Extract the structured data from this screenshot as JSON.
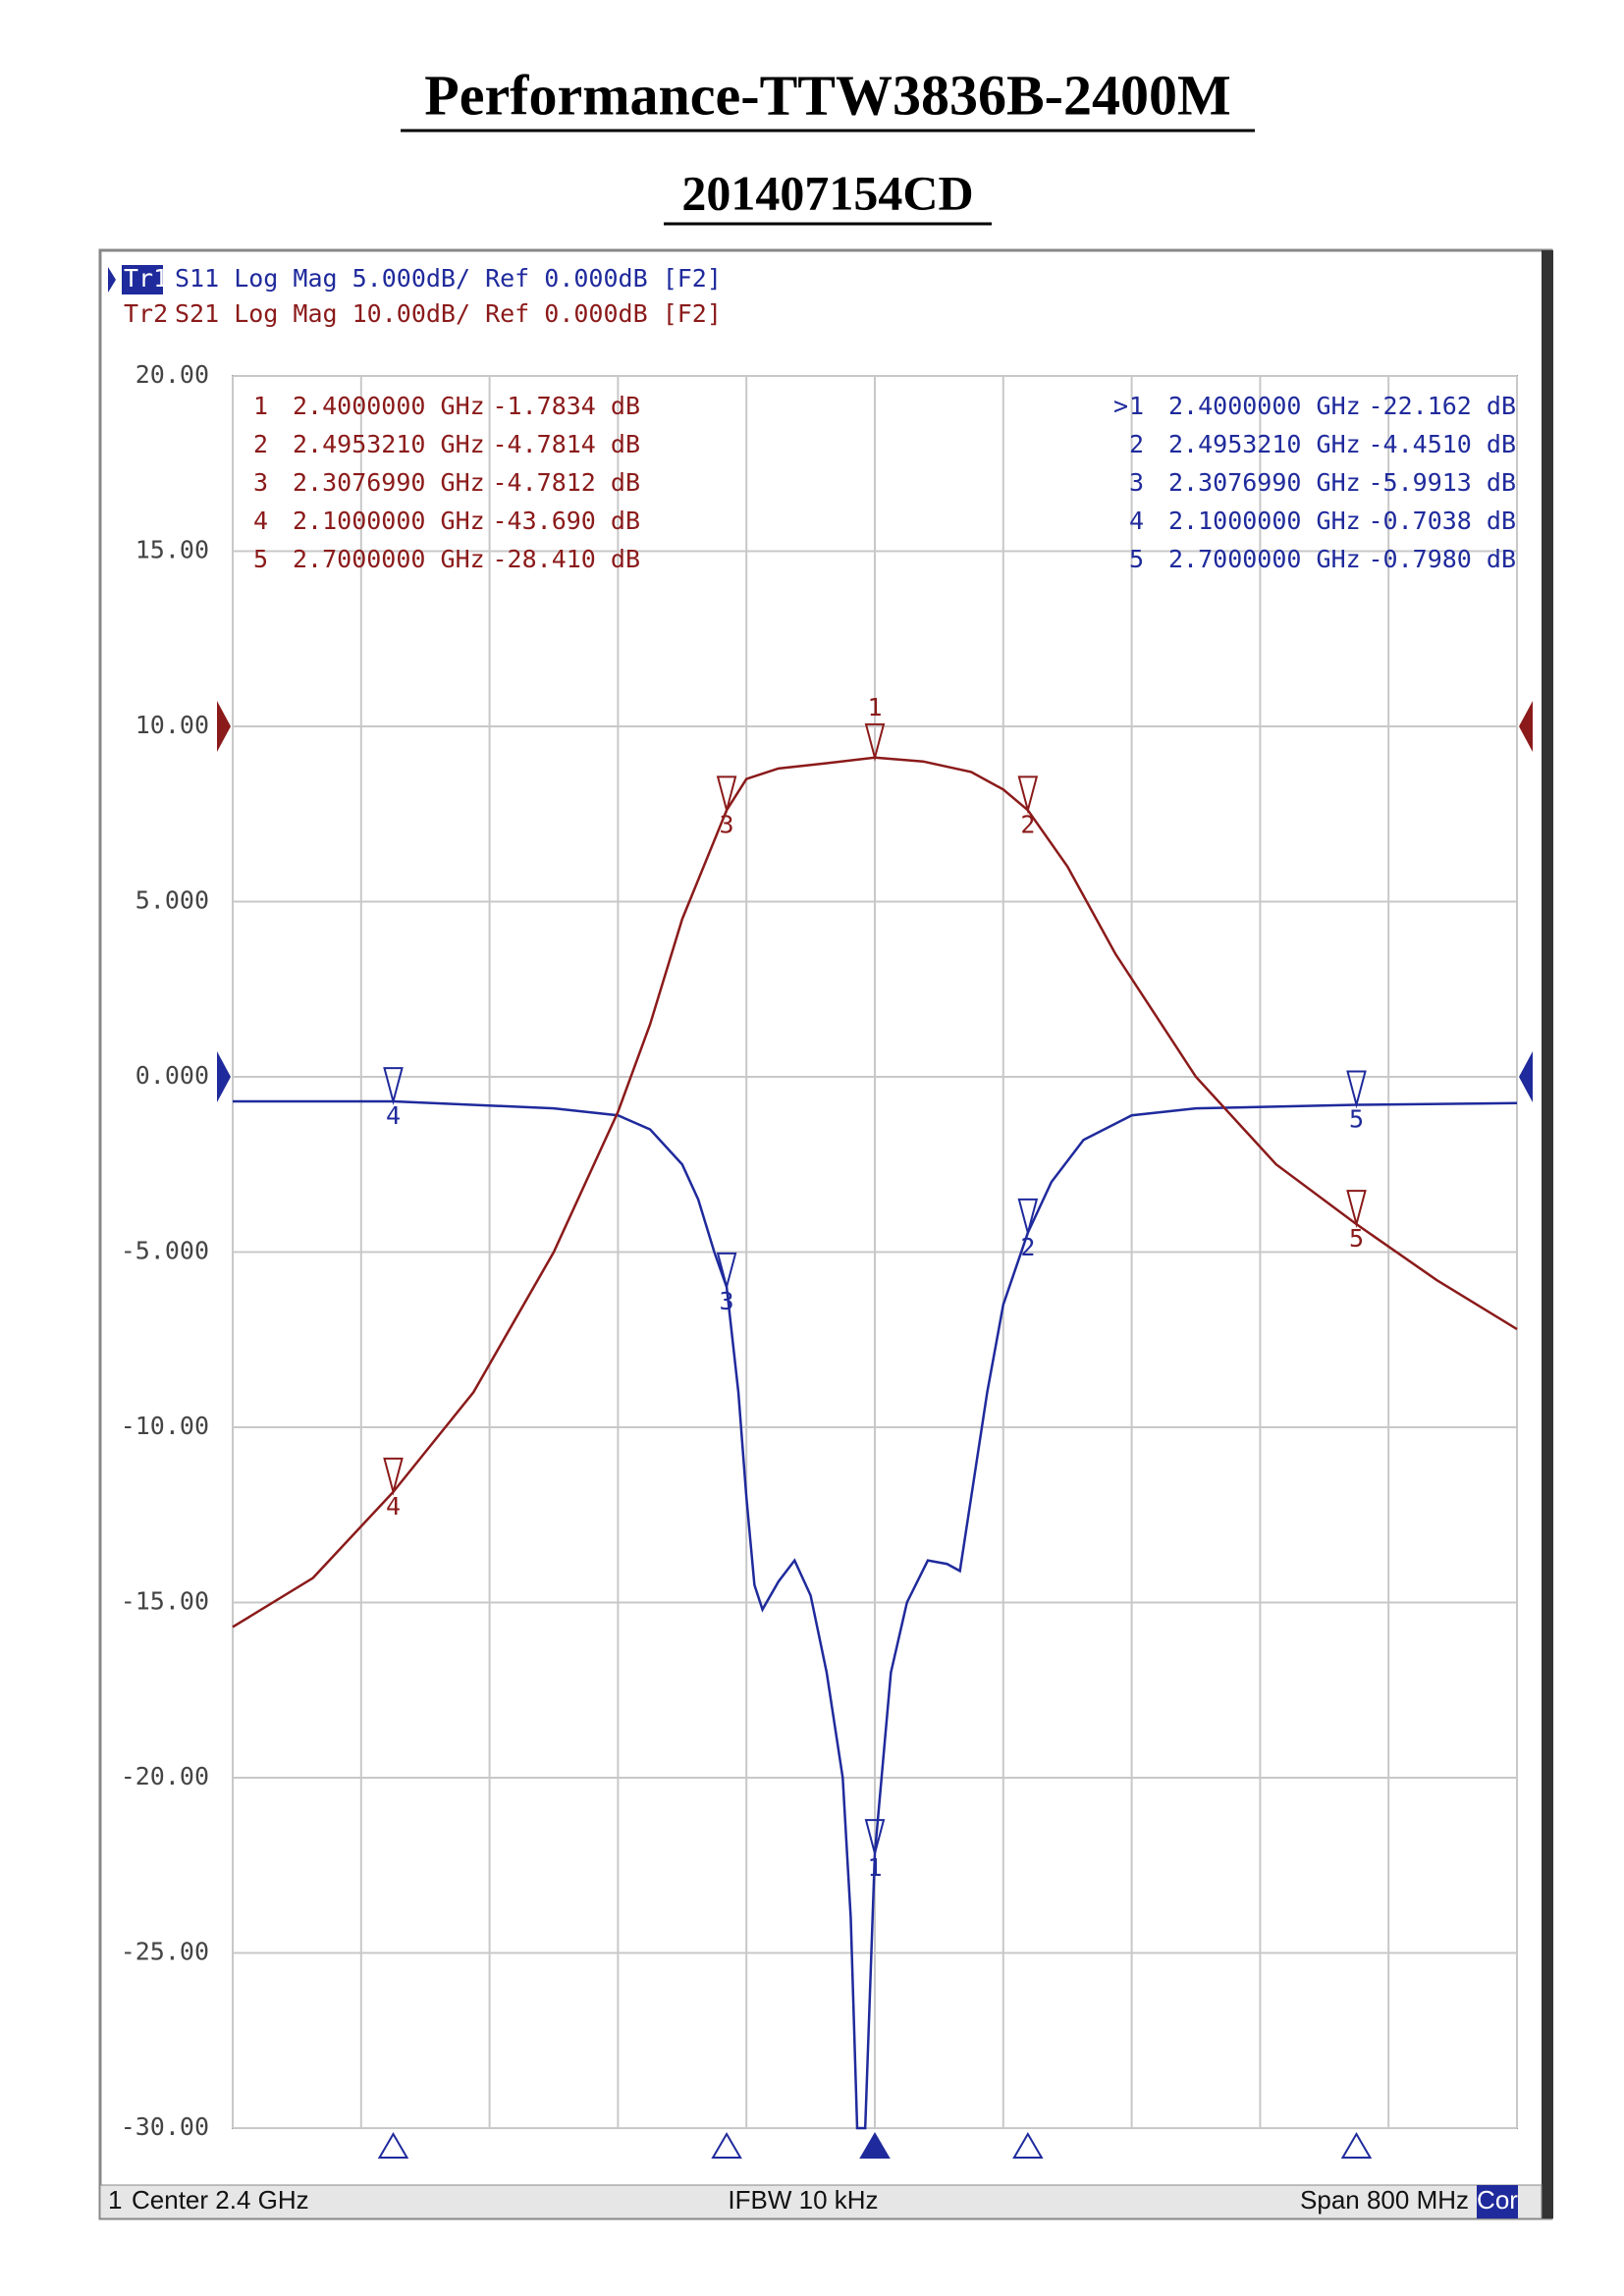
{
  "title": "Performance-TTW3836B-2400M",
  "subtitle": "201407154CD",
  "chart_data": {
    "type": "line",
    "xlim": [
      2.0,
      2.8
    ],
    "xticks": [
      2.0,
      2.08,
      2.16,
      2.24,
      2.32,
      2.4,
      2.48,
      2.56,
      2.64,
      2.72,
      2.8
    ],
    "ylim": [
      -30,
      20
    ],
    "yticks": [
      {
        "value": 20,
        "label": "20.00"
      },
      {
        "value": 15,
        "label": "15.00"
      },
      {
        "value": 10,
        "label": "10.00"
      },
      {
        "value": 5,
        "label": "5.000"
      },
      {
        "value": 0,
        "label": "0.000"
      },
      {
        "value": -5,
        "label": "-5.000"
      },
      {
        "value": -10,
        "label": "-10.00"
      },
      {
        "value": -15,
        "label": "-15.00"
      },
      {
        "value": -20,
        "label": "-20.00"
      },
      {
        "value": -25,
        "label": "-25.00"
      },
      {
        "value": -30,
        "label": "-30.00"
      }
    ],
    "y2lim": [
      -80,
      20
    ],
    "grid": true,
    "series": [
      {
        "name": "Tr1",
        "info": "S11 Log Mag 5.000dB/ Ref 0.000dB [F2]",
        "color": "#1f2a9c",
        "ref": 0,
        "x": [
          2.0,
          2.1,
          2.2,
          2.24,
          2.26,
          2.28,
          2.29,
          2.3,
          2.3077,
          2.315,
          2.32,
          2.325,
          2.33,
          2.34,
          2.35,
          2.36,
          2.37,
          2.38,
          2.385,
          2.389,
          2.394,
          2.4,
          2.41,
          2.42,
          2.433,
          2.445,
          2.453,
          2.46,
          2.47,
          2.48,
          2.4953,
          2.51,
          2.53,
          2.56,
          2.6,
          2.7,
          2.8
        ],
        "values": [
          -0.7,
          -0.7,
          -0.9,
          -1.1,
          -1.5,
          -2.5,
          -3.5,
          -5,
          -6,
          -9,
          -12,
          -14.5,
          -15.2,
          -14.4,
          -13.8,
          -14.8,
          -17,
          -20,
          -24,
          -30,
          -30,
          -22.162,
          -17,
          -15,
          -13.8,
          -13.9,
          -14.1,
          -12,
          -9,
          -6.5,
          -4.451,
          -3,
          -1.8,
          -1.1,
          -0.9,
          -0.798,
          -0.75
        ],
        "markers": [
          {
            "label": "1",
            "x": 2.4,
            "y": -22.162,
            "x_label": "2.4000000 GHz",
            "y_label": "-22.162 dB",
            "active": true
          },
          {
            "label": "2",
            "x": 2.495321,
            "y": -4.451,
            "x_label": "2.4953210 GHz",
            "y_label": "-4.4510 dB"
          },
          {
            "label": "3",
            "x": 2.307699,
            "y": -5.9913,
            "x_label": "2.3076990 GHz",
            "y_label": "-5.9913 dB"
          },
          {
            "label": "4",
            "x": 2.1,
            "y": -0.7038,
            "x_label": "2.1000000 GHz",
            "y_label": "-0.7038 dB"
          },
          {
            "label": "5",
            "x": 2.7,
            "y": -0.798,
            "x_label": "2.7000000 GHz",
            "y_label": "-0.7980 dB"
          }
        ]
      },
      {
        "name": "Tr2",
        "info": "S21 Log Mag 10.00dB/ Ref 0.000dB [F2]",
        "color": "#8b1a1a",
        "axis": "y2",
        "ref": 0,
        "x": [
          2.0,
          2.05,
          2.1,
          2.15,
          2.2,
          2.24,
          2.26,
          2.28,
          2.3077,
          2.32,
          2.34,
          2.37,
          2.4,
          2.43,
          2.46,
          2.48,
          2.4953,
          2.52,
          2.55,
          2.6,
          2.65,
          2.7,
          2.75,
          2.8
        ],
        "values": [
          -51.4,
          -48.6,
          -43.69,
          -38,
          -30,
          -22,
          -17,
          -11,
          -4.78,
          -3,
          -2.4,
          -2.1,
          -1.78,
          -2,
          -2.6,
          -3.6,
          -4.78,
          -8,
          -13,
          -20,
          -25,
          -28.41,
          -31.6,
          -34.4
        ],
        "markers": [
          {
            "label": "1",
            "x": 2.4,
            "y": -1.7834,
            "x_label": "2.4000000 GHz",
            "y_label": "-1.7834 dB"
          },
          {
            "label": "2",
            "x": 2.495321,
            "y": -4.7814,
            "x_label": "2.4953210 GHz",
            "y_label": "-4.7814 dB"
          },
          {
            "label": "3",
            "x": 2.307699,
            "y": -4.7812,
            "x_label": "2.3076990 GHz",
            "y_label": "-4.7812 dB"
          },
          {
            "label": "4",
            "x": 2.1,
            "y": -43.69,
            "x_label": "2.1000000 GHz",
            "y_label": "-43.690 dB"
          },
          {
            "label": "5",
            "x": 2.7,
            "y": -28.41,
            "x_label": "2.7000000 GHz",
            "y_label": "-28.410 dB"
          }
        ]
      }
    ],
    "footer": {
      "channel": "1",
      "center": "Center 2.4 GHz",
      "ifbw": "IFBW 10 kHz",
      "span": "Span 800 MHz",
      "cor": "Cor"
    }
  }
}
